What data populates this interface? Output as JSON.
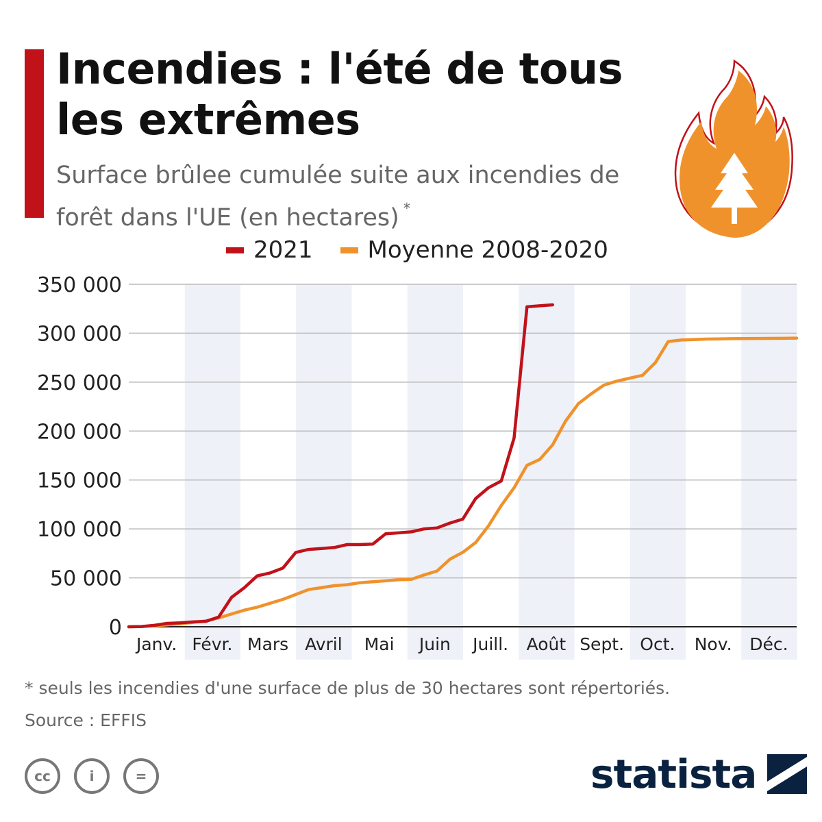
{
  "header": {
    "title": "Incendies : l'été de tous les extrêmes",
    "subtitle": "Surface brûlee cumulée suite aux incendies de forêt dans l'UE (en hectares)",
    "subtitle_note": "*",
    "accent_color": "#c1121a",
    "illustration": "flame-tree-icon"
  },
  "legend": [
    {
      "label": "2021",
      "color": "#c1121a"
    },
    {
      "label": "Moyenne 2008-2020",
      "color": "#f0922b"
    }
  ],
  "chart_data": {
    "type": "line",
    "ylim": [
      0,
      350000
    ],
    "y_ticks": [
      0,
      50000,
      100000,
      150000,
      200000,
      250000,
      300000,
      350000
    ],
    "y_tick_labels": [
      "0",
      "50 000",
      "100 000",
      "150 000",
      "200 000",
      "250 000",
      "300 000",
      "350 000"
    ],
    "x_range": [
      0,
      52
    ],
    "x_unit": "semaine",
    "categories": [
      "Janv.",
      "Févr.",
      "Mars",
      "Avril",
      "Mai",
      "Juin",
      "Juill.",
      "Août",
      "Sept.",
      "Oct.",
      "Nov.",
      "Déc."
    ],
    "shaded_month_bands": [
      "Févr.",
      "Avril",
      "Juin",
      "Août",
      "Oct.",
      "Déc."
    ],
    "grid": true,
    "band_color": "#eef1f8",
    "series": [
      {
        "name": "2021",
        "color": "#c1121a",
        "x": [
          0,
          1,
          2,
          3,
          4,
          5,
          6,
          7,
          8,
          9,
          10,
          11,
          12,
          13,
          14,
          15,
          16,
          17,
          18,
          19,
          20,
          21,
          22,
          23,
          24,
          25,
          26,
          27,
          28,
          29,
          30,
          31,
          32,
          33
        ],
        "values": [
          0,
          300,
          1500,
          3500,
          4000,
          5000,
          5500,
          10000,
          30000,
          40000,
          52000,
          55000,
          60000,
          76000,
          79000,
          80000,
          81000,
          84000,
          84000,
          84500,
          95000,
          96000,
          97000,
          100000,
          101000,
          106000,
          110000,
          131000,
          142000,
          149000,
          193000,
          327000,
          328000,
          329000
        ]
      },
      {
        "name": "Moyenne 2008-2020",
        "color": "#f0922b",
        "x": [
          0,
          1,
          2,
          3,
          4,
          5,
          6,
          7,
          8,
          9,
          10,
          11,
          12,
          13,
          14,
          15,
          16,
          17,
          18,
          19,
          20,
          21,
          22,
          23,
          24,
          25,
          26,
          27,
          28,
          29,
          30,
          31,
          32,
          33,
          34,
          35,
          36,
          37,
          38,
          39,
          40,
          41,
          42,
          43,
          44,
          45,
          46,
          47,
          48,
          49,
          50,
          51,
          52
        ],
        "values": [
          0,
          300,
          1000,
          2000,
          3000,
          4500,
          6000,
          9000,
          13000,
          17000,
          20000,
          24000,
          28000,
          33000,
          38000,
          40000,
          42000,
          43000,
          45000,
          46000,
          47000,
          48000,
          48500,
          53000,
          57000,
          69000,
          76000,
          86000,
          103000,
          124000,
          142000,
          165000,
          171000,
          186000,
          210000,
          228000,
          238000,
          247000,
          251000,
          254000,
          257000,
          270000,
          291500,
          293000,
          293500,
          294000,
          294200,
          294400,
          294500,
          294600,
          294700,
          294800,
          295000
        ]
      }
    ]
  },
  "footnote": "* seuls les incendies d'une surface de plus de 30 hectares sont répertoriés.",
  "source": "Source : EFFIS",
  "license_icons": [
    {
      "name": "cc-icon",
      "glyph": "cc"
    },
    {
      "name": "attribution-icon",
      "glyph": "i"
    },
    {
      "name": "no-derivatives-icon",
      "glyph": "="
    }
  ],
  "brand": {
    "name": "statista",
    "color": "#0a2240"
  }
}
